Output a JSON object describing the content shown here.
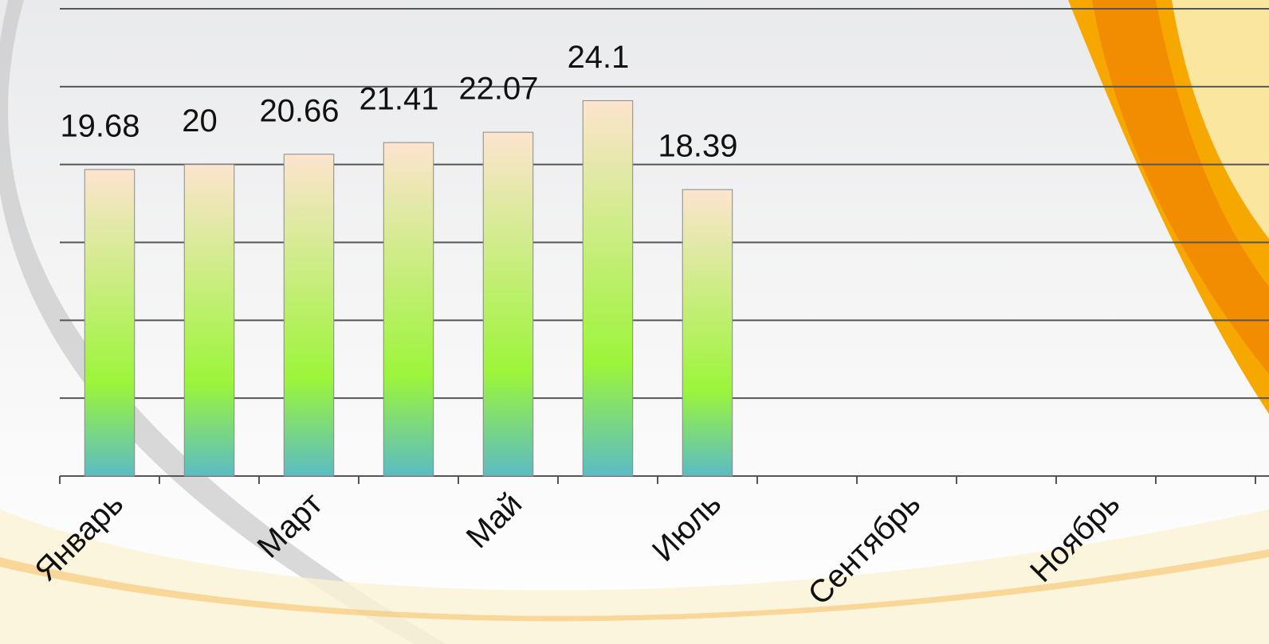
{
  "chart_data": {
    "type": "bar",
    "categories": [
      "Январь",
      null,
      "Март",
      null,
      "Май",
      null,
      "Июль",
      null,
      "Сентябрь",
      null,
      "Ноябрь",
      null
    ],
    "values": [
      19.68,
      20,
      20.66,
      21.41,
      22.07,
      24.1,
      18.39,
      null,
      null,
      null,
      null,
      null
    ],
    "color": "#9cf53a",
    "ylim": [
      0,
      30
    ],
    "yticks": [
      0,
      5,
      10,
      15,
      20,
      25,
      30
    ],
    "grid": true
  }
}
